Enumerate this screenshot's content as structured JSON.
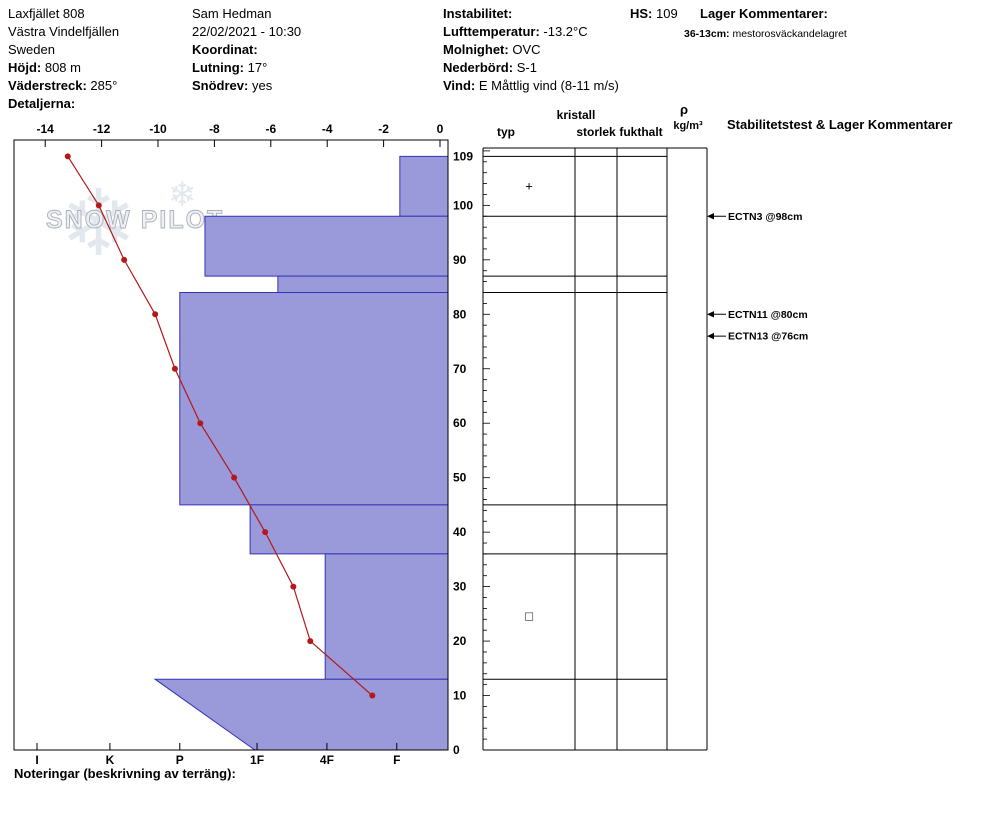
{
  "header": {
    "site": {
      "name": "Laxfjället 808",
      "region": "Västra Vindelfjällen",
      "country": "Sweden",
      "elevation_label": "Höjd:",
      "elevation_value": "808 m",
      "aspect_label": "Väderstreck:",
      "aspect_value": "285°",
      "details_label": "Detaljerna:"
    },
    "observer": {
      "name": "Sam Hedman",
      "datetime": "22/02/2021 - 10:30",
      "coordinates_label": "Koordinat:",
      "slope_label": "Lutning:",
      "slope_value": "17°",
      "snowdrift_label": "Snödrev:",
      "snowdrift_value": "yes"
    },
    "weather": {
      "instability_label": "Instabilitet:",
      "airtemp_label": "Lufttemperatur:",
      "airtemp_value": "-13.2°C",
      "sky_label": "Molnighet:",
      "sky_value": "OVC",
      "precip_label": "Nederbörd:",
      "precip_value": "S-1",
      "wind_label": "Vind:",
      "wind_value": "E Måttlig vind (8-11 m/s)"
    },
    "hs_label": "HS:",
    "hs_value": "109",
    "layer_comments": {
      "title": "Lager Kommentarer:",
      "range": "36-13cm:",
      "text": "mestorosväckandelagret"
    }
  },
  "columns": {
    "typ": "typ",
    "kristall": "kristall",
    "storlek": "storlek",
    "fukthalt": "fukthalt",
    "rho": "ρ",
    "rho_unit": "kg/m³",
    "stability": "Stabilitetstest & Lager Kommentarer"
  },
  "footer": {
    "notes_label": "Noteringar (beskrivning av terräng):"
  },
  "watermark": {
    "text": "SNOW PILOT",
    "snowflake_glyph": "❄"
  },
  "chart_data": {
    "type": "snow-profile",
    "hs_cm": 109,
    "depth_axis": {
      "unit": "cm",
      "ticks": [
        0,
        10,
        20,
        30,
        40,
        50,
        60,
        70,
        80,
        90,
        100,
        109
      ]
    },
    "temp_axis": {
      "unit": "°C",
      "ticks": [
        -14,
        -12,
        -10,
        -8,
        -6,
        -4,
        -2,
        0
      ],
      "min": -14,
      "max": 0
    },
    "hardness_axis": {
      "labels": [
        {
          "code": "I",
          "frac": 0.053
        },
        {
          "code": "K",
          "frac": 0.221
        },
        {
          "code": "P",
          "frac": 0.382
        },
        {
          "code": "1F",
          "frac": 0.56
        },
        {
          "code": "4F",
          "frac": 0.721
        },
        {
          "code": "F",
          "frac": 0.882
        }
      ]
    },
    "layers": [
      {
        "top_cm": 109,
        "bottom_cm": 98,
        "hardness": "F",
        "frac_top": 0.889,
        "frac_bottom": 0.889
      },
      {
        "top_cm": 98,
        "bottom_cm": 87,
        "hardness": "P-",
        "frac_top": 0.44,
        "frac_bottom": 0.44
      },
      {
        "top_cm": 87,
        "bottom_cm": 84,
        "hardness": "1F-",
        "frac_top": 0.608,
        "frac_bottom": 0.608
      },
      {
        "top_cm": 84,
        "bottom_cm": 45,
        "hardness": "P",
        "frac_top": 0.382,
        "frac_bottom": 0.382
      },
      {
        "top_cm": 45,
        "bottom_cm": 36,
        "hardness": "1F",
        "frac_top": 0.544,
        "frac_bottom": 0.544
      },
      {
        "top_cm": 36,
        "bottom_cm": 13,
        "hardness": "4F",
        "frac_top": 0.717,
        "frac_bottom": 0.717
      },
      {
        "top_cm": 13,
        "bottom_cm": 0,
        "hardness": "P+ to 1F",
        "frac_top": 0.325,
        "frac_bottom": 0.555
      }
    ],
    "layer_boundaries_cm": [
      109,
      98,
      87,
      84,
      45,
      36,
      13,
      0
    ],
    "temperature_profile": [
      {
        "height_cm": 109,
        "temp_c": -13.2
      },
      {
        "height_cm": 100,
        "temp_c": -12.1
      },
      {
        "height_cm": 90,
        "temp_c": -11.2
      },
      {
        "height_cm": 80,
        "temp_c": -10.1
      },
      {
        "height_cm": 70,
        "temp_c": -9.4
      },
      {
        "height_cm": 60,
        "temp_c": -8.5
      },
      {
        "height_cm": 50,
        "temp_c": -7.3
      },
      {
        "height_cm": 40,
        "temp_c": -6.2
      },
      {
        "height_cm": 30,
        "temp_c": -5.2
      },
      {
        "height_cm": 20,
        "temp_c": -4.6
      },
      {
        "height_cm": 10,
        "temp_c": -2.4
      }
    ],
    "crystal_symbols": [
      {
        "height_cm": 103.5,
        "symbol": "+",
        "name": "precipitation-particles"
      },
      {
        "height_cm": 24.5,
        "symbol": "□",
        "name": "faceted-crystals"
      }
    ],
    "stability_tests": [
      {
        "label": "ECTN3 @98cm",
        "height_cm": 98
      },
      {
        "label": "ECTN11 @80cm",
        "height_cm": 80
      },
      {
        "label": "ECTN13 @76cm",
        "height_cm": 76
      }
    ],
    "colors": {
      "layer_fill": "#9a99da",
      "layer_stroke": "#3434b4",
      "temp_line": "#b41818",
      "grid": "#000000"
    }
  }
}
